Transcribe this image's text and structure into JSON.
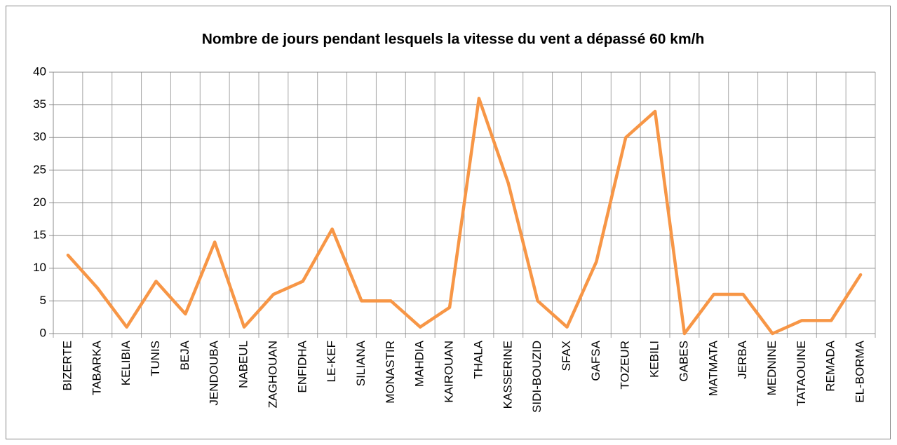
{
  "chart_data": {
    "type": "line",
    "title": "Nombre de jours pendant lesquels la vitesse du vent a dépassé 60 km/h",
    "categories": [
      "BIZERTE",
      "TABARKA",
      "KELIBIA",
      "TUNIS",
      "BEJA",
      "JENDOUBA",
      "NABEUL",
      "ZAGHOUAN",
      "ENFIDHA",
      "LE-KEF",
      "SILIANA",
      "MONASTIR",
      "MAHDIA",
      "KAIROUAN",
      "THALA",
      "KASSERINE",
      "SIDI-BOUZID",
      "SFAX",
      "GAFSA",
      "TOZEUR",
      "KEBILI",
      "GABES",
      "MATMATA",
      "JERBA",
      "MEDNINE",
      "TATAOUINE",
      "REMADA",
      "EL-BORMA"
    ],
    "values": [
      12,
      7,
      1,
      8,
      3,
      14,
      1,
      6,
      8,
      16,
      5,
      5,
      1,
      4,
      36,
      23,
      5,
      1,
      11,
      30,
      34,
      0,
      6,
      6,
      0,
      2,
      2,
      9
    ],
    "color": "#f79646",
    "ylim": [
      0,
      40
    ],
    "yticks": [
      0,
      5,
      10,
      15,
      20,
      25,
      30,
      35,
      40
    ],
    "grid": true
  }
}
